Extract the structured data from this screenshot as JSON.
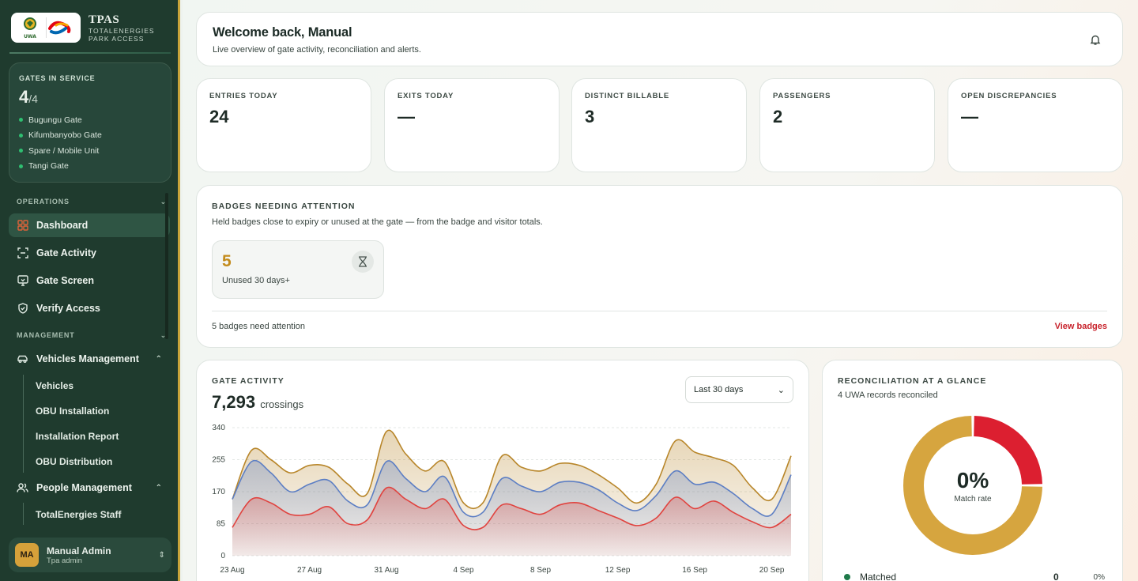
{
  "brand": {
    "title": "TPAS",
    "sub1": "TOTALENERGIES",
    "sub2": "PARK ACCESS",
    "uwa_text": "UWA"
  },
  "gates": {
    "label": "GATES IN SERVICE",
    "count": "4",
    "total": "/4",
    "items": [
      "Bugungu Gate",
      "Kifumbanyobo Gate",
      "Spare / Mobile Unit",
      "Tangi Gate"
    ]
  },
  "nav": {
    "operations_label": "OPERATIONS",
    "management_label": "MANAGEMENT",
    "operations": [
      {
        "label": "Dashboard",
        "icon": "grid-icon"
      },
      {
        "label": "Gate Activity",
        "icon": "scan-icon"
      },
      {
        "label": "Gate Screen",
        "icon": "monitor-icon"
      },
      {
        "label": "Verify Access",
        "icon": "shield-check-icon"
      }
    ],
    "vehicles": {
      "label": "Vehicles Management",
      "icon": "car-icon",
      "children": [
        "Vehicles",
        "OBU Installation",
        "Installation Report",
        "OBU Distribution"
      ]
    },
    "people": {
      "label": "People Management",
      "icon": "users-icon",
      "children": [
        "TotalEnergies Staff"
      ]
    }
  },
  "user": {
    "initials": "MA",
    "name": "Manual Admin",
    "role": "Tpa admin"
  },
  "welcome": {
    "title": "Welcome back, Manual",
    "subtitle": "Live overview of gate activity, reconciliation and alerts."
  },
  "stats": [
    {
      "label": "ENTRIES TODAY",
      "value": "24"
    },
    {
      "label": "EXITS TODAY",
      "value": "—"
    },
    {
      "label": "DISTINCT BILLABLE",
      "value": "3"
    },
    {
      "label": "PASSENGERS",
      "value": "2"
    },
    {
      "label": "OPEN DISCREPANCIES",
      "value": "—"
    }
  ],
  "badges": {
    "title": "BADGES NEEDING ATTENTION",
    "subtitle": "Held badges close to expiry or unused at the gate — from the badge and visitor totals.",
    "card_value": "5",
    "card_label": "Unused 30 days+",
    "footer": "5 badges need attention",
    "link": "View badges"
  },
  "activity": {
    "title": "GATE ACTIVITY",
    "total": "7,293",
    "unit": "crossings",
    "range": "Last 30 days"
  },
  "recon": {
    "title": "RECONCILIATION AT A GLANCE",
    "subtitle": "4 UWA records reconciled",
    "pct": "0%",
    "pct_label": "Match rate",
    "legend": [
      {
        "name": "Matched",
        "count": "0",
        "pct": "0%"
      }
    ],
    "segments": [
      {
        "value": 1,
        "color": "#dc1f30"
      },
      {
        "value": 3,
        "color": "#d6a53f"
      }
    ]
  },
  "chart_data": {
    "type": "area",
    "x": [
      "23 Aug",
      "24 Aug",
      "25 Aug",
      "26 Aug",
      "27 Aug",
      "28 Aug",
      "29 Aug",
      "30 Aug",
      "31 Aug",
      "1 Sep",
      "2 Sep",
      "3 Sep",
      "4 Sep",
      "5 Sep",
      "6 Sep",
      "7 Sep",
      "8 Sep",
      "9 Sep",
      "10 Sep",
      "11 Sep",
      "12 Sep",
      "13 Sep",
      "14 Sep",
      "15 Sep",
      "16 Sep",
      "17 Sep",
      "18 Sep",
      "19 Sep",
      "20 Sep",
      "21 Sep"
    ],
    "x_tick_labels": [
      "23 Aug",
      "27 Aug",
      "31 Aug",
      "4 Sep",
      "8 Sep",
      "12 Sep",
      "16 Sep",
      "20 Sep"
    ],
    "ylim": [
      0,
      340
    ],
    "y_ticks": [
      0,
      85,
      170,
      255,
      340
    ],
    "stacked": true,
    "series": [
      {
        "color": "#e0433f",
        "values": [
          75,
          150,
          140,
          110,
          110,
          130,
          85,
          95,
          180,
          150,
          125,
          150,
          80,
          75,
          135,
          125,
          110,
          135,
          140,
          120,
          100,
          80,
          100,
          155,
          125,
          145,
          115,
          90,
          75,
          110
        ]
      },
      {
        "color": "#5c7ec4",
        "values": [
          75,
          100,
          80,
          60,
          80,
          70,
          60,
          40,
          70,
          55,
          45,
          60,
          35,
          40,
          70,
          60,
          60,
          60,
          55,
          55,
          40,
          40,
          60,
          70,
          65,
          50,
          50,
          35,
          35,
          105
        ]
      },
      {
        "color": "#b8862a",
        "values": [
          0,
          30,
          35,
          50,
          50,
          35,
          45,
          30,
          80,
          65,
          55,
          40,
          25,
          25,
          60,
          50,
          55,
          50,
          45,
          40,
          40,
          20,
          30,
          80,
          85,
          65,
          75,
          55,
          40,
          50
        ]
      }
    ]
  }
}
